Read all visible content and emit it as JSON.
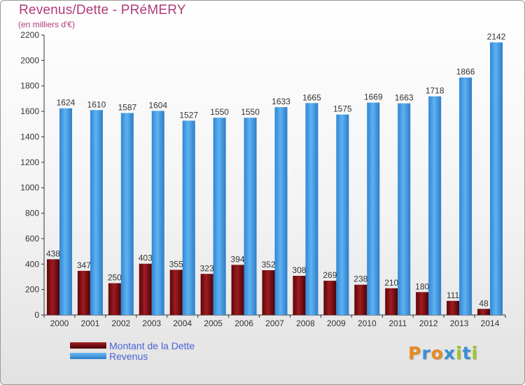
{
  "header": {
    "title": "Revenus/Dette - PRéMERY",
    "subtitle": "(en milliers d'€)"
  },
  "chart_data": {
    "type": "bar",
    "title": "Revenus/Dette - PRéMERY",
    "subtitle": "(en milliers d'€)",
    "xlabel": "",
    "ylabel": "",
    "categories": [
      "2000",
      "2001",
      "2002",
      "2003",
      "2004",
      "2005",
      "2006",
      "2007",
      "2008",
      "2009",
      "2010",
      "2011",
      "2012",
      "2013",
      "2014"
    ],
    "series": [
      {
        "name": "Montant de la Dette",
        "color": "#7a0f12",
        "values": [
          438,
          347,
          250,
          403,
          355,
          323,
          394,
          352,
          308,
          269,
          238,
          210,
          180,
          111,
          48
        ]
      },
      {
        "name": "Revenus",
        "color": "#3a9ae6",
        "values": [
          1624,
          1610,
          1587,
          1604,
          1527,
          1550,
          1550,
          1633,
          1665,
          1575,
          1669,
          1663,
          1718,
          1866,
          2142
        ]
      }
    ],
    "ylim": [
      0,
      2200
    ],
    "yticks": [
      0,
      200,
      400,
      600,
      800,
      1000,
      1200,
      1400,
      1600,
      1800,
      2000,
      2200
    ],
    "grid": false,
    "legend_position": "bottom-left"
  },
  "legend": {
    "items": [
      {
        "label": "Montant de la Dette",
        "color": "#7a0f12"
      },
      {
        "label": "Revenus",
        "color": "#3a9ae6"
      }
    ]
  },
  "branding": {
    "letters": [
      {
        "char": "P",
        "color": "#e78a1f"
      },
      {
        "char": "r",
        "color": "#3a8fd6"
      },
      {
        "char": "o",
        "color": "#e78a1f"
      },
      {
        "char": "x",
        "color": "#3a8fd6"
      },
      {
        "char": "i",
        "color": "#9bc42b"
      },
      {
        "char": "t",
        "color": "#3a8fd6"
      },
      {
        "char": "i",
        "color": "#9bc42b"
      }
    ]
  }
}
